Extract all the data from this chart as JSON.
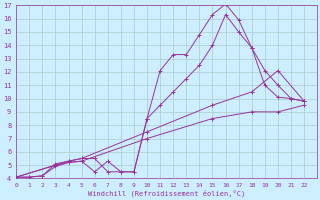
{
  "xlabel": "Windchill (Refroidissement éolien,°C)",
  "bg_color": "#cceeff",
  "line_color": "#993399",
  "grid_color": "#aacccc",
  "xmin": 0,
  "xmax": 23,
  "ymin": 4,
  "ymax": 17,
  "series": [
    {
      "x": [
        0,
        1,
        2,
        3,
        4,
        5,
        6,
        7,
        8,
        9,
        10,
        11,
        12,
        13,
        14,
        15,
        16,
        17,
        18,
        19,
        20,
        21,
        22
      ],
      "y": [
        4.1,
        4.1,
        4.2,
        4.9,
        5.2,
        5.3,
        4.5,
        5.3,
        4.5,
        4.5,
        8.5,
        12.1,
        13.3,
        13.3,
        14.8,
        16.3,
        17.1,
        15.9,
        13.8,
        11.0,
        10.1,
        10.0,
        9.8
      ]
    },
    {
      "x": [
        0,
        1,
        2,
        3,
        4,
        5,
        6,
        7,
        8,
        9,
        10,
        11,
        12,
        13,
        14,
        15,
        16,
        17,
        18,
        19,
        20,
        21,
        22
      ],
      "y": [
        4.1,
        4.1,
        4.2,
        5.1,
        5.3,
        5.5,
        5.5,
        4.5,
        4.5,
        4.5,
        8.5,
        9.5,
        10.5,
        11.5,
        12.5,
        14.0,
        16.3,
        15.0,
        13.8,
        12.1,
        11.0,
        10.0,
        9.8
      ]
    },
    {
      "x": [
        0,
        3,
        4,
        5,
        10,
        15,
        18,
        20,
        22
      ],
      "y": [
        4.1,
        5.0,
        5.3,
        5.5,
        7.5,
        9.5,
        10.5,
        12.1,
        9.8
      ]
    },
    {
      "x": [
        0,
        3,
        4,
        5,
        10,
        15,
        18,
        20,
        22
      ],
      "y": [
        4.1,
        5.0,
        5.2,
        5.3,
        7.0,
        8.5,
        9.0,
        9.0,
        9.5
      ]
    }
  ]
}
